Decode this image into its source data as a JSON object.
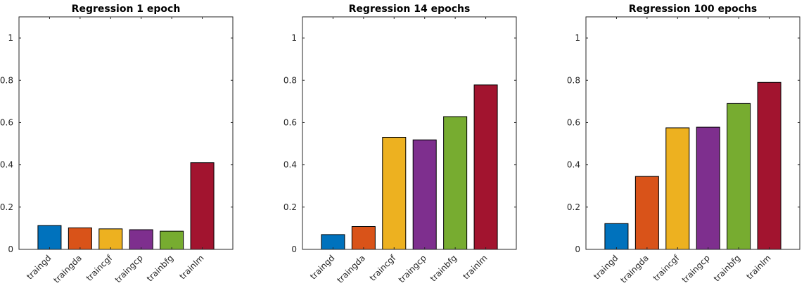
{
  "chart_data": [
    {
      "type": "bar",
      "title": "Regression 1 epoch",
      "xlabel": "",
      "ylabel": "",
      "categories": [
        "traingd",
        "traingda",
        "traincgf",
        "traingcp",
        "trainbfg",
        "trainlm"
      ],
      "values": [
        0.113,
        0.102,
        0.097,
        0.093,
        0.086,
        0.41
      ],
      "colors": [
        "#0072BD",
        "#D95319",
        "#EDB120",
        "#7E2F8E",
        "#77AC30",
        "#A2142F"
      ],
      "ylim": [
        0,
        1.1
      ],
      "yticks": [
        0,
        0.2,
        0.4,
        0.6,
        0.8,
        1
      ],
      "ytick_labels": [
        "0",
        "0.2",
        "0.4",
        "0.6",
        "0.8",
        "1"
      ],
      "grid": false
    },
    {
      "type": "bar",
      "title": "Regression 14 epochs",
      "xlabel": "",
      "ylabel": "",
      "categories": [
        "traingd",
        "traingda",
        "traincgf",
        "traingcp",
        "trainbfg",
        "trainlm"
      ],
      "values": [
        0.07,
        0.108,
        0.53,
        0.518,
        0.628,
        0.778
      ],
      "colors": [
        "#0072BD",
        "#D95319",
        "#EDB120",
        "#7E2F8E",
        "#77AC30",
        "#A2142F"
      ],
      "ylim": [
        0,
        1.1
      ],
      "yticks": [
        0,
        0.2,
        0.4,
        0.6,
        0.8,
        1
      ],
      "ytick_labels": [
        "0",
        "0.2",
        "0.4",
        "0.6",
        "0.8",
        "1"
      ],
      "grid": false
    },
    {
      "type": "bar",
      "title": "Regression 100 epochs",
      "xlabel": "",
      "ylabel": "",
      "categories": [
        "traingd",
        "traingda",
        "traincgf",
        "traingcp",
        "trainbfg",
        "trainlm"
      ],
      "values": [
        0.122,
        0.345,
        0.575,
        0.578,
        0.69,
        0.79
      ],
      "colors": [
        "#0072BD",
        "#D95319",
        "#EDB120",
        "#7E2F8E",
        "#77AC30",
        "#A2142F"
      ],
      "ylim": [
        0,
        1.1
      ],
      "yticks": [
        0,
        0.2,
        0.4,
        0.6,
        0.8,
        1
      ],
      "ytick_labels": [
        "0",
        "0.2",
        "0.4",
        "0.6",
        "0.8",
        "1"
      ],
      "grid": false
    }
  ]
}
